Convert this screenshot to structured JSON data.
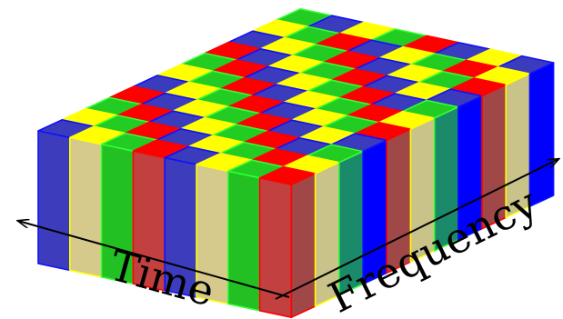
{
  "axes": {
    "time_label": "Time",
    "frequency_label": "Frequency"
  },
  "grid": {
    "time_slots": 8,
    "frequency_slots": 11,
    "pattern": [
      [
        "blue",
        "yellow",
        "green",
        "red",
        "blue",
        "yellow",
        "green",
        "red",
        "blue",
        "yellow",
        "green"
      ],
      [
        "yellow",
        "green",
        "red",
        "blue",
        "yellow",
        "green",
        "red",
        "blue",
        "yellow",
        "green",
        "blue"
      ],
      [
        "green",
        "red",
        "blue",
        "yellow",
        "green",
        "red",
        "blue",
        "yellow",
        "green",
        "red",
        "yellow"
      ],
      [
        "red",
        "blue",
        "yellow",
        "green",
        "red",
        "blue",
        "yellow",
        "green",
        "red",
        "blue",
        "green"
      ],
      [
        "blue",
        "yellow",
        "green",
        "red",
        "blue",
        "yellow",
        "green",
        "red",
        "blue",
        "yellow",
        "red"
      ],
      [
        "yellow",
        "green",
        "red",
        "blue",
        "yellow",
        "green",
        "red",
        "blue",
        "yellow",
        "green",
        "blue"
      ],
      [
        "green",
        "red",
        "blue",
        "yellow",
        "green",
        "red",
        "blue",
        "yellow",
        "green",
        "red",
        "yellow"
      ],
      [
        "red",
        "yellow",
        "green",
        "blue",
        "red",
        "yellow",
        "green",
        "blue",
        "red",
        "yellow",
        "blue"
      ]
    ]
  },
  "colors": {
    "blue": {
      "top": "#3b3bbe",
      "front": "#3c3cbc",
      "side": "#0000ff",
      "edge": "#1010ff"
    },
    "yellow": {
      "top": "#ffff00",
      "front": "#d6c98c",
      "side": "#c9c38a",
      "edge": "#ffff00"
    },
    "green": {
      "top": "#22cc22",
      "front": "#22c022",
      "side": "#1a8a6a",
      "edge": "#33ff33"
    },
    "red": {
      "top": "#ff0000",
      "front": "#c24040",
      "side": "#a04848",
      "edge": "#ff0000"
    }
  }
}
